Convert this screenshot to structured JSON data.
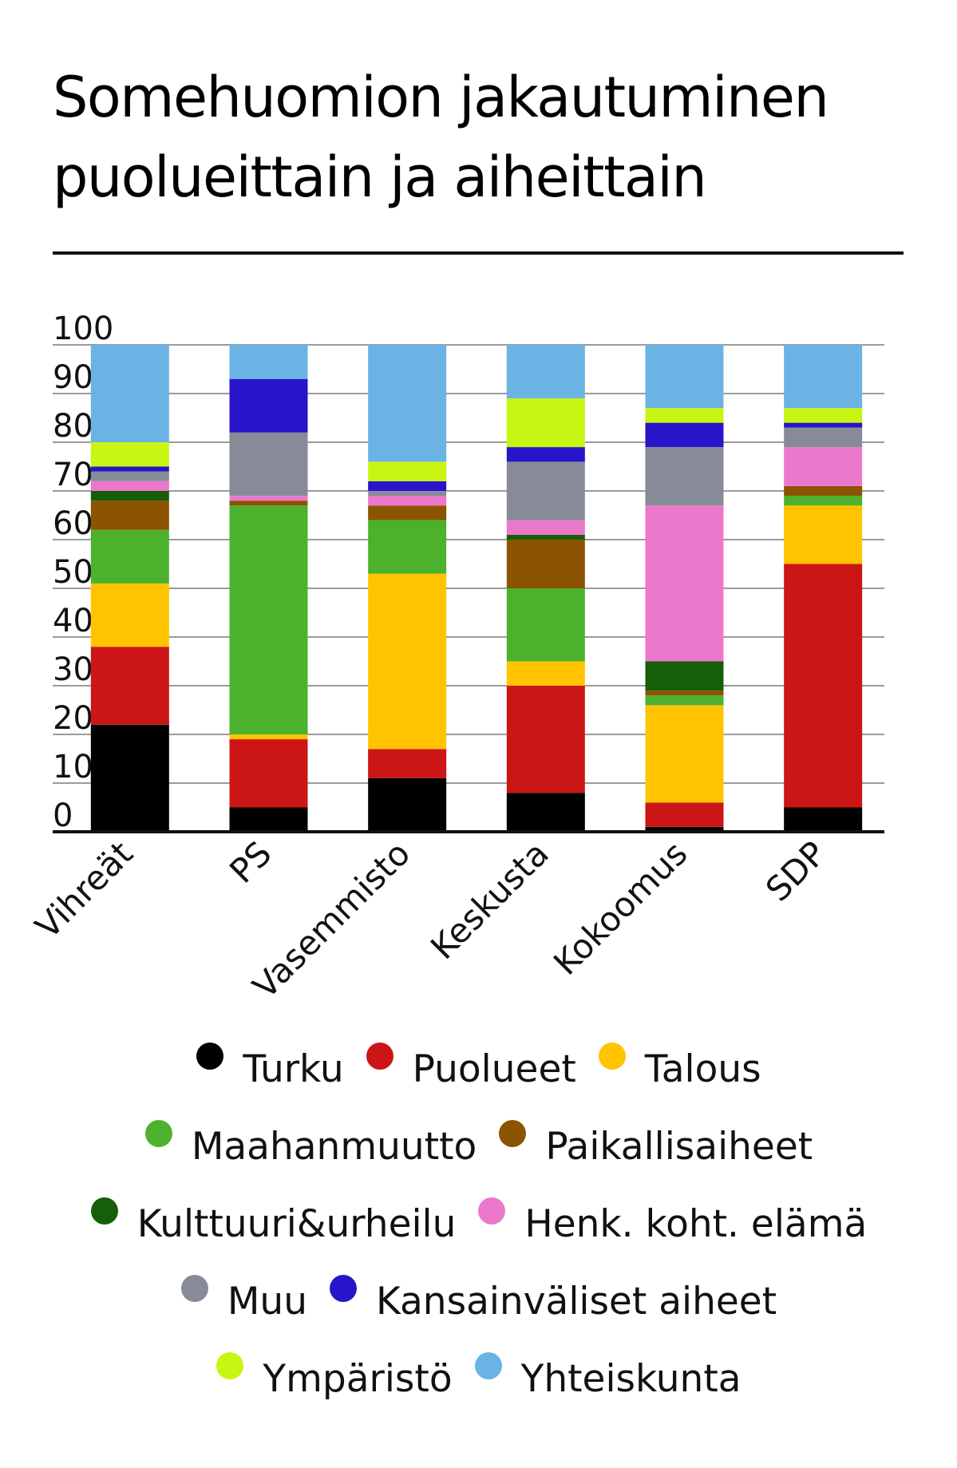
{
  "chart_data": {
    "type": "bar",
    "stacked": true,
    "title": "Somehuomion jakautuminen puolueittain ja aiheittain",
    "categories": [
      "Vihreät",
      "PS",
      "Vasemmisto",
      "Keskusta",
      "Kokoomus",
      "SDP"
    ],
    "ylim": [
      0,
      100
    ],
    "yticks": [
      "0",
      "10",
      "20",
      "30",
      "40",
      "50",
      "60",
      "70",
      "80",
      "90",
      "100"
    ],
    "grid": true,
    "legend_position": "bottom",
    "series": [
      {
        "name": "Turku",
        "color": "#000000",
        "values": [
          22,
          5,
          11,
          8,
          1,
          5
        ]
      },
      {
        "name": "Puolueet",
        "color": "#cc1515",
        "values": [
          16,
          14,
          6,
          22,
          5,
          50
        ]
      },
      {
        "name": "Talous",
        "color": "#ffc300",
        "values": [
          13,
          1,
          36,
          5,
          20,
          12
        ]
      },
      {
        "name": "Maahanmuutto",
        "color": "#4cb22d",
        "values": [
          11,
          47,
          11,
          15,
          2,
          2
        ]
      },
      {
        "name": "Paikallisaiheet",
        "color": "#8b5400",
        "values": [
          6,
          1,
          3,
          10,
          1,
          2
        ]
      },
      {
        "name": "Kulttuuri&urheilu",
        "color": "#175e08",
        "values": [
          2,
          0,
          0,
          1,
          6,
          0
        ]
      },
      {
        "name": "Henk. koht. elämä",
        "color": "#ec78cc",
        "values": [
          2,
          1,
          2,
          3,
          32,
          8
        ]
      },
      {
        "name": "Muu",
        "color": "#868b97",
        "values": [
          2,
          13,
          1,
          12,
          12,
          4
        ]
      },
      {
        "name": "Kansainväliset aiheet",
        "color": "#2815c9",
        "values": [
          1,
          11,
          2,
          3,
          5,
          1
        ]
      },
      {
        "name": "Ympäristö",
        "color": "#c8f512",
        "values": [
          5,
          0,
          4,
          10,
          3,
          3
        ]
      },
      {
        "name": "Yhteiskunta",
        "color": "#6ab3e4",
        "values": [
          20,
          7,
          24,
          11,
          13,
          13
        ]
      }
    ]
  },
  "legend": {
    "rows": [
      [
        {
          "label": "Turku",
          "color": "#000000"
        },
        {
          "label": "Puolueet",
          "color": "#cc1515"
        },
        {
          "label": "Talous",
          "color": "#ffc300"
        }
      ],
      [
        {
          "label": "Maahanmuutto",
          "color": "#4cb22d"
        },
        {
          "label": "Paikallisaiheet",
          "color": "#8b5400"
        }
      ],
      [
        {
          "label": "Kulttuuri&urheilu",
          "color": "#175e08"
        },
        {
          "label": "Henk. koht. elämä",
          "color": "#ec78cc"
        }
      ],
      [
        {
          "label": "Muu",
          "color": "#868b97"
        },
        {
          "label": "Kansainväliset aiheet",
          "color": "#2815c9"
        }
      ],
      [
        {
          "label": "Ympäristö",
          "color": "#c8f512"
        },
        {
          "label": "Yhteiskunta",
          "color": "#6ab3e4"
        }
      ]
    ]
  }
}
